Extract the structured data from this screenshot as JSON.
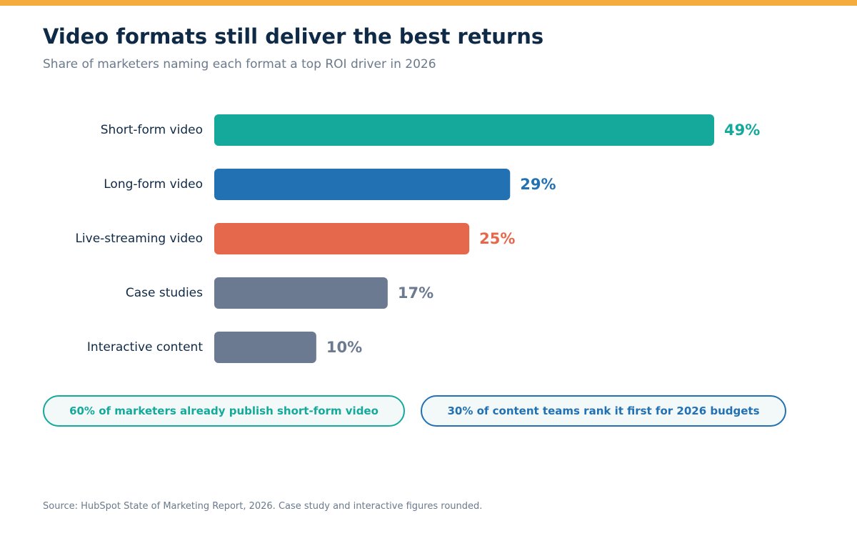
{
  "colors": {
    "stripe": "#f4ad3d",
    "title": "#0f2a47",
    "muted": "#6b7a8c",
    "teal": "#15a99c",
    "blue": "#2271b3",
    "coral": "#e6684c",
    "slate": "#6b7a90"
  },
  "header": {
    "title": "Video formats still deliver the best returns",
    "subtitle": "Share of marketers naming each format a top ROI driver in 2026"
  },
  "chart_data": {
    "type": "bar",
    "orientation": "horizontal",
    "categories": [
      "Short-form video",
      "Long-form video",
      "Live-streaming video",
      "Case studies",
      "Interactive content"
    ],
    "values": [
      49,
      29,
      25,
      17,
      10
    ],
    "value_labels": [
      "49%",
      "29%",
      "25%",
      "17%",
      "10%"
    ],
    "bar_colors": [
      "#15a99c",
      "#2271b3",
      "#e6684c",
      "#6b7a90",
      "#6b7a90"
    ],
    "title": "Video formats still deliver the best returns",
    "subtitle": "Share of marketers naming each format a top ROI driver in 2026",
    "xlabel": "",
    "ylabel": "",
    "xlim": [
      0,
      49
    ],
    "grid": false,
    "legend": "none"
  },
  "callouts": [
    {
      "text": "60% of marketers already publish short-form video",
      "color": "#15a99c"
    },
    {
      "text": "30% of content teams rank it first for 2026 budgets",
      "color": "#2271b3"
    }
  ],
  "footer": {
    "source": "Source: HubSpot State of Marketing Report, 2026. Case study and interactive figures rounded."
  }
}
